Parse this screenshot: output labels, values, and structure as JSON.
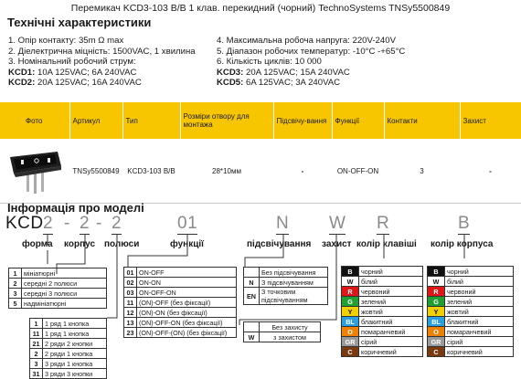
{
  "title": "Перемикач KCD3-103 B/B 1 клав. перекидний (чорний) TechnoSystems TNSy5500849",
  "specs_heading": "Технічні характеристики",
  "specs_left": [
    "1. Опір контакту: 35m Ω  max",
    "2. Діелектрична міцність:  1500VAC, 1 хвилина",
    "3. Номінальний робочий струм:"
  ],
  "kcd1_label": "KCD1:",
  "kcd1_value": " 10A 125VAC; 6A 240VAC",
  "kcd2_label": "KCD2:",
  "kcd2_value": " 20A 125VAC; 16A 240VAC",
  "specs_right": [
    "4. Максимальна робоча напруга: 220V-240V",
    "5. Діапазон робочих температур: -10°C -+65°C",
    "6. Кількість циклів: 10 000"
  ],
  "kcd3_label": "KCD3:",
  "kcd3_value": " 20A 125VAC; 15A 240VAC",
  "kcd5_label": "KCD5:",
  "kcd5_value": " 6A 125VAC; 3A 240VAC",
  "table": {
    "headers": [
      "Фото",
      "Артикул",
      "Тип",
      "Розміри отвору для монтажа",
      "Підсвічу-вання",
      "Функції",
      "Контакти",
      "Захист"
    ],
    "row": {
      "article": "TNSy5500849",
      "type": "KCD3-103 B/B",
      "size": "28*10мм",
      "backlight": "-",
      "function": "ON-OFF-ON",
      "contacts": "3",
      "protection": "-"
    }
  },
  "model_heading": "Інформація про моделі",
  "code": {
    "kcd": "KCD",
    "p1": "2",
    "d1": "-",
    "p2": "2",
    "d2": "-",
    "p3": "2",
    "p4": "01",
    "p5": "N",
    "p6": "W",
    "p7": "R",
    "p8": "B"
  },
  "labels": {
    "form": "форма",
    "body": "корпус",
    "poles": "полюси",
    "function": "функції",
    "backlight": "підсвічування",
    "protection": "захист",
    "key_color": "колір клавіші",
    "body_color": "колір корпуса"
  },
  "forms": [
    [
      "1",
      "мініатюрні"
    ],
    [
      "2",
      "середні 2 полюси"
    ],
    [
      "3",
      "середні 3 полюси"
    ],
    [
      "5",
      "надмініатюрні"
    ]
  ],
  "functions": [
    [
      "01",
      "ON-OFF"
    ],
    [
      "02",
      "ON-ON"
    ],
    [
      "03",
      "ON-OFF-ON"
    ],
    [
      "11",
      "(ON)-OFF (без фіксації)"
    ],
    [
      "12",
      "(ON)-ON (без фіксації)"
    ],
    [
      "13",
      "(ON)-OFF-ON (без фіксації)"
    ],
    [
      "23",
      "(ON)-OFF-(ON) (без фіксації)"
    ]
  ],
  "backlights": [
    [
      "",
      "Без підсвічування"
    ],
    [
      "N",
      "З підсвічуванням"
    ],
    [
      "EN",
      "З точковим підсвічуванням"
    ]
  ],
  "protections": [
    [
      "",
      "Без захисту"
    ],
    [
      "W",
      "з захистом"
    ]
  ],
  "keys": [
    [
      "1",
      "1 ряд 1 кнопка"
    ],
    [
      "11",
      "1 ряд 1 кнопка"
    ],
    [
      "21",
      "2 ряди 2 кнопки"
    ],
    [
      "2",
      "2 ряди 1 кнопка"
    ],
    [
      "3",
      "3 ряди 1 кнопка"
    ],
    [
      "31",
      "3 ряди 3 кнопки"
    ]
  ],
  "colors": [
    {
      "code": "B",
      "name": "чорний",
      "hex": "#111111"
    },
    {
      "code": "W",
      "name": "білий",
      "hex": "#ffffff"
    },
    {
      "code": "R",
      "name": "червоний",
      "hex": "#e01515"
    },
    {
      "code": "G",
      "name": "зелений",
      "hex": "#20a030"
    },
    {
      "code": "Y",
      "name": "жовтий",
      "hex": "#f0d000"
    },
    {
      "code": "BL",
      "name": "блакитний",
      "hex": "#2aa0e0"
    },
    {
      "code": "O",
      "name": "помаранчевий",
      "hex": "#f08000"
    },
    {
      "code": "GR",
      "name": "сірий",
      "hex": "#9a9a9a"
    },
    {
      "code": "C",
      "name": "коричневий",
      "hex": "#7a3a10"
    }
  ]
}
